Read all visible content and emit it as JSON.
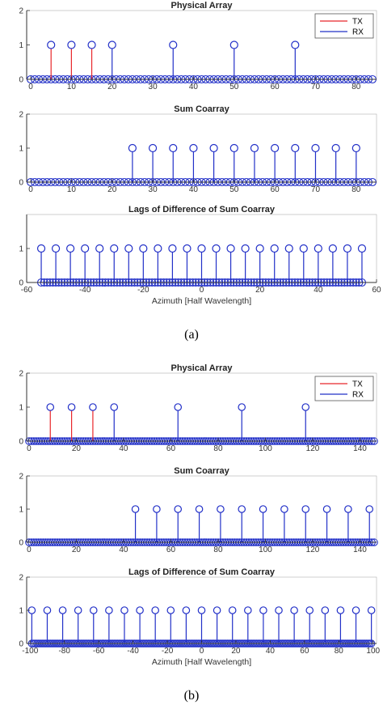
{
  "figure_a": {
    "caption": "(a)",
    "charts": [
      {
        "id": "a1",
        "title": "Physical Array",
        "type": "stem",
        "xlim": [
          -1,
          85
        ],
        "ylim": [
          0,
          2
        ],
        "xticks": [
          0,
          10,
          20,
          30,
          40,
          50,
          60,
          70,
          80
        ],
        "yticks": [
          0,
          1,
          2
        ],
        "legend": {
          "position": "top-right",
          "entries": [
            {
              "label": "TX",
              "color": "#e8262a"
            },
            {
              "label": "RX",
              "color": "#2230c8"
            }
          ]
        },
        "zeros": {
          "start": 0,
          "end": 84,
          "step": 1
        },
        "series": [
          {
            "name": "TX",
            "color": "#e8262a",
            "x": [
              5,
              10,
              15
            ],
            "y": [
              1,
              1,
              1
            ]
          },
          {
            "name": "RX",
            "color": "#2230c8",
            "x": [
              20,
              35,
              50,
              65
            ],
            "y": [
              1,
              1,
              1,
              1
            ]
          }
        ]
      },
      {
        "id": "a2",
        "title": "Sum Coarray",
        "type": "stem",
        "xlim": [
          -1,
          85
        ],
        "ylim": [
          0,
          2
        ],
        "xticks": [
          0,
          10,
          20,
          30,
          40,
          50,
          60,
          70,
          80
        ],
        "yticks": [
          0,
          1,
          2
        ],
        "zeros": {
          "start": 0,
          "end": 84,
          "step": 1
        },
        "series": [
          {
            "color": "#2230c8",
            "x": [
              25,
              30,
              35,
              40,
              45,
              50,
              55,
              60,
              65,
              70,
              75,
              80
            ],
            "y": [
              1,
              1,
              1,
              1,
              1,
              1,
              1,
              1,
              1,
              1,
              1,
              1
            ]
          }
        ]
      },
      {
        "id": "a3",
        "title": "Lags of Difference of Sum Coarray",
        "type": "stem",
        "xlim": [
          -60,
          60
        ],
        "ylim": [
          0,
          2
        ],
        "xticks": [
          -60,
          -40,
          -20,
          0,
          20,
          40,
          60
        ],
        "yticks": [
          0,
          1
        ],
        "xlabel": "Azimuth [Half Wavelength]",
        "zeros": {
          "start": -55,
          "end": 55,
          "step": 1
        },
        "series": [
          {
            "color": "#2230c8",
            "x": [
              -55,
              -50,
              -45,
              -40,
              -35,
              -30,
              -25,
              -20,
              -15,
              -10,
              -5,
              0,
              5,
              10,
              15,
              20,
              25,
              30,
              35,
              40,
              45,
              50,
              55
            ],
            "y": [
              1,
              1,
              1,
              1,
              1,
              1,
              1,
              1,
              1,
              1,
              1,
              1,
              1,
              1,
              1,
              1,
              1,
              1,
              1,
              1,
              1,
              1,
              1
            ]
          }
        ]
      }
    ]
  },
  "figure_b": {
    "caption": "(b)",
    "charts": [
      {
        "id": "b1",
        "title": "Physical Array",
        "type": "stem",
        "xlim": [
          -1,
          147
        ],
        "ylim": [
          0,
          2
        ],
        "xticks": [
          0,
          20,
          40,
          60,
          80,
          100,
          120,
          140
        ],
        "yticks": [
          0,
          1,
          2
        ],
        "legend": {
          "position": "top-right",
          "entries": [
            {
              "label": "TX",
              "color": "#e8262a"
            },
            {
              "label": "RX",
              "color": "#2230c8"
            }
          ]
        },
        "zeros": {
          "start": 0,
          "end": 146,
          "step": 1
        },
        "series": [
          {
            "name": "TX",
            "color": "#e8262a",
            "x": [
              9,
              18,
              27
            ],
            "y": [
              1,
              1,
              1
            ]
          },
          {
            "name": "RX",
            "color": "#2230c8",
            "x": [
              36,
              63,
              90,
              117
            ],
            "y": [
              1,
              1,
              1,
              1
            ]
          }
        ]
      },
      {
        "id": "b2",
        "title": "Sum Coarray",
        "type": "stem",
        "xlim": [
          -1,
          147
        ],
        "ylim": [
          0,
          2
        ],
        "xticks": [
          0,
          20,
          40,
          60,
          80,
          100,
          120,
          140
        ],
        "yticks": [
          0,
          1,
          2
        ],
        "zeros": {
          "start": 0,
          "end": 146,
          "step": 1
        },
        "series": [
          {
            "color": "#2230c8",
            "x": [
              45,
              54,
              63,
              72,
              81,
              90,
              99,
              108,
              117,
              126,
              135,
              144
            ],
            "y": [
              1,
              1,
              1,
              1,
              1,
              1,
              1,
              1,
              1,
              1,
              1,
              1
            ]
          }
        ]
      },
      {
        "id": "b3",
        "title": "Lags of Difference of Sum Coarray",
        "type": "stem",
        "xlim": [
          -102,
          102
        ],
        "ylim": [
          0,
          2
        ],
        "xticks": [
          -100,
          -80,
          -60,
          -40,
          -20,
          0,
          20,
          40,
          60,
          80,
          100
        ],
        "yticks": [
          0,
          1,
          2
        ],
        "xlabel": "Azimuth [Half Wavelength]",
        "zeros": {
          "start": -99,
          "end": 99,
          "step": 1
        },
        "series": [
          {
            "color": "#2230c8",
            "x": [
              -99,
              -90,
              -81,
              -72,
              -63,
              -54,
              -45,
              -36,
              -27,
              -18,
              -9,
              0,
              9,
              18,
              27,
              36,
              45,
              54,
              63,
              72,
              81,
              90,
              99
            ],
            "y": [
              1,
              1,
              1,
              1,
              1,
              1,
              1,
              1,
              1,
              1,
              1,
              1,
              1,
              1,
              1,
              1,
              1,
              1,
              1,
              1,
              1,
              1,
              1
            ]
          }
        ]
      }
    ]
  },
  "colors": {
    "tx": "#e8262a",
    "rx": "#2230c8",
    "axis": "#333333"
  }
}
